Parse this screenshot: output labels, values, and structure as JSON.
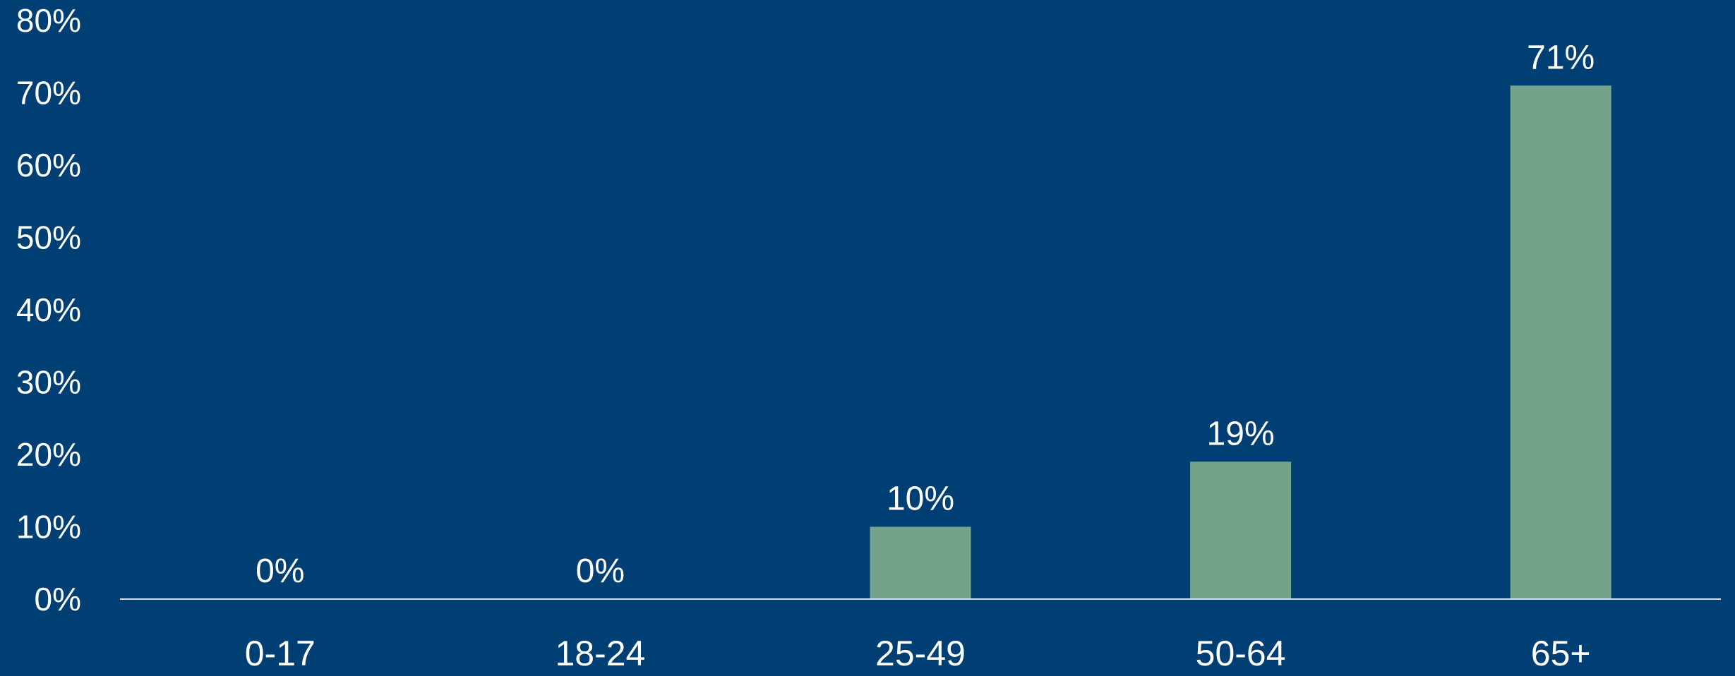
{
  "colors": {
    "background": "#003f74",
    "bar": "#72a38a",
    "baseline": "#d6dde6",
    "text": "#ffffff"
  },
  "chart_data": {
    "type": "bar",
    "categories": [
      "0-17",
      "18-24",
      "25-49",
      "50-64",
      "65+"
    ],
    "values": [
      0,
      0,
      10,
      19,
      71
    ],
    "value_labels": [
      "0%",
      "0%",
      "10%",
      "19%",
      "71%"
    ],
    "ylim": [
      0,
      80
    ],
    "yticks": [
      0,
      10,
      20,
      30,
      40,
      50,
      60,
      70,
      80
    ],
    "ytick_labels": [
      "0%",
      "10%",
      "20%",
      "30%",
      "40%",
      "50%",
      "60%",
      "70%",
      "80%"
    ],
    "grid": false,
    "legend": "none"
  }
}
